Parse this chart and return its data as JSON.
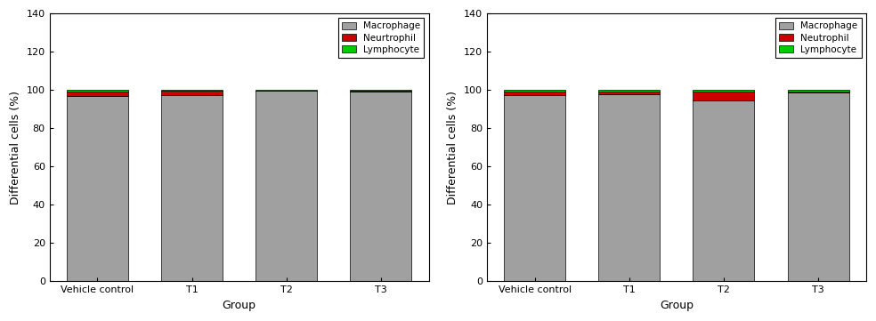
{
  "left": {
    "categories": [
      "Vehicle control",
      "T1",
      "T2",
      "T3"
    ],
    "macrophage": [
      97.0,
      97.5,
      99.5,
      99.3
    ],
    "neutrophil": [
      2.0,
      2.0,
      0.3,
      0.5
    ],
    "lymphocyte": [
      1.0,
      0.5,
      0.2,
      0.2
    ],
    "legend_neutrophil": "Neurtrophil"
  },
  "right": {
    "categories": [
      "Vehicle control",
      "T1",
      "T2",
      "T3"
    ],
    "macrophage": [
      97.5,
      97.8,
      94.5,
      98.5
    ],
    "neutrophil": [
      1.5,
      1.2,
      4.5,
      0.8
    ],
    "lymphocyte": [
      1.0,
      1.0,
      1.0,
      0.7
    ],
    "legend_neutrophil": "Neutrophil"
  },
  "macrophage_color": "#a0a0a0",
  "neutrophil_color": "#cc0000",
  "lymphocyte_color": "#00cc00",
  "ylabel": "Differential cells (%)",
  "xlabel": "Group",
  "ylim": [
    0,
    140
  ],
  "yticks": [
    0,
    20,
    40,
    60,
    80,
    100,
    120,
    140
  ],
  "legend_macrophage": "Macrophage",
  "legend_lymphocyte": "Lymphocyte",
  "bar_width": 0.65,
  "bar_edge_color": "black",
  "bar_edge_width": 0.5,
  "background_color": "white",
  "label_fontsize": 9,
  "tick_fontsize": 8,
  "legend_fontsize": 7.5
}
